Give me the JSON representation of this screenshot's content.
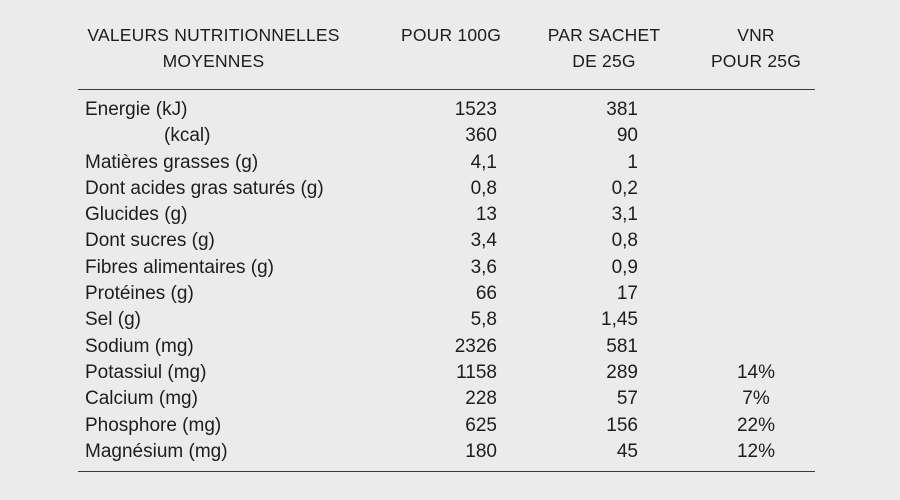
{
  "page": {
    "background_color": "#ebebeb",
    "text_color": "#1d1d1d",
    "rule_color": "#3a3a3a"
  },
  "table": {
    "headers": [
      {
        "line1": "VALEURS NUTRITIONNELLES",
        "line2": "MOYENNES"
      },
      {
        "line1": "POUR 100G",
        "line2": ""
      },
      {
        "line1": "PAR SACHET",
        "line2": "DE 25G"
      },
      {
        "line1": "VNR",
        "line2": "POUR 25G"
      }
    ],
    "rows": [
      {
        "label": "Energie (kJ)",
        "per100g": "1523",
        "per_sachet": "381",
        "vnr": ""
      },
      {
        "label": "(kcal)",
        "per100g": "360",
        "per_sachet": "90",
        "vnr": ""
      },
      {
        "label": "Matières grasses (g)",
        "per100g": "4,1",
        "per_sachet": "1",
        "vnr": ""
      },
      {
        "label": "Dont acides gras saturés (g)",
        "per100g": "0,8",
        "per_sachet": "0,2",
        "vnr": ""
      },
      {
        "label": "Glucides (g)",
        "per100g": "13",
        "per_sachet": "3,1",
        "vnr": ""
      },
      {
        "label": "Dont sucres (g)",
        "per100g": "3,4",
        "per_sachet": "0,8",
        "vnr": ""
      },
      {
        "label": "Fibres alimentaires (g)",
        "per100g": "3,6",
        "per_sachet": "0,9",
        "vnr": ""
      },
      {
        "label": "Protéines (g)",
        "per100g": "66",
        "per_sachet": "17",
        "vnr": ""
      },
      {
        "label": "Sel (g)",
        "per100g": "5,8",
        "per_sachet": "1,45",
        "vnr": ""
      },
      {
        "label": "Sodium (mg)",
        "per100g": "2326",
        "per_sachet": "581",
        "vnr": ""
      },
      {
        "label": "Potassiul (mg)",
        "per100g": "1158",
        "per_sachet": "289",
        "vnr": "14%"
      },
      {
        "label": "Calcium (mg)",
        "per100g": "228",
        "per_sachet": "57",
        "vnr": "7%"
      },
      {
        "label": "Phosphore (mg)",
        "per100g": "625",
        "per_sachet": "156",
        "vnr": "22%"
      },
      {
        "label": "Magnésium (mg)",
        "per100g": "180",
        "per_sachet": "45",
        "vnr": "12%"
      }
    ]
  }
}
